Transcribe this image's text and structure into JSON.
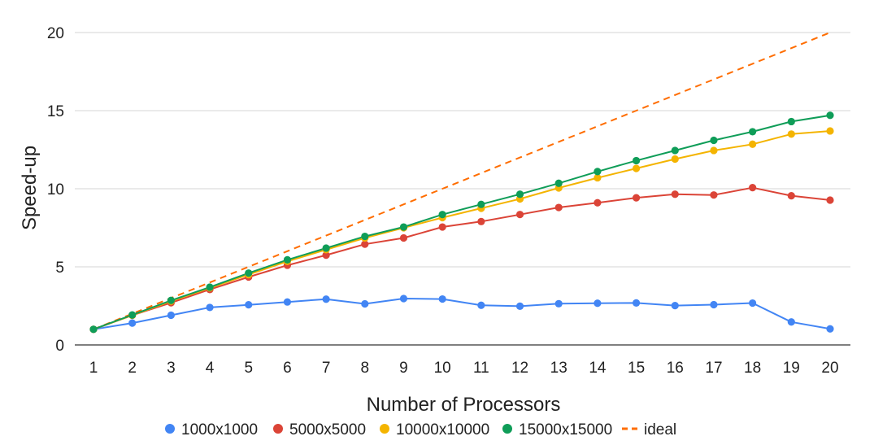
{
  "chart_data": {
    "type": "line",
    "title": "",
    "xlabel": "Number of Processors",
    "ylabel": "Speed-up",
    "x": [
      1,
      2,
      3,
      4,
      5,
      6,
      7,
      8,
      9,
      10,
      11,
      12,
      13,
      14,
      15,
      16,
      17,
      18,
      19,
      20
    ],
    "ylim": [
      0,
      20
    ],
    "yticks": [
      0,
      5,
      10,
      15,
      20
    ],
    "grid": true,
    "legend_position": "bottom",
    "series": [
      {
        "name": "1000x1000",
        "color": "#4285F4",
        "style": "solid",
        "markers": true,
        "values": [
          1.0,
          1.4,
          1.9,
          2.4,
          2.57,
          2.75,
          2.93,
          2.63,
          2.97,
          2.94,
          2.54,
          2.48,
          2.64,
          2.67,
          2.69,
          2.52,
          2.58,
          2.68,
          1.47,
          1.03
        ]
      },
      {
        "name": "5000x5000",
        "color": "#DB4437",
        "style": "solid",
        "markers": true,
        "values": [
          1.0,
          1.9,
          2.7,
          3.55,
          4.35,
          5.1,
          5.75,
          6.45,
          6.85,
          7.55,
          7.9,
          8.35,
          8.8,
          9.1,
          9.42,
          9.65,
          9.6,
          10.07,
          9.55,
          9.27
        ]
      },
      {
        "name": "10000x10000",
        "color": "#F4B400",
        "style": "solid",
        "markers": true,
        "values": [
          1.0,
          1.9,
          2.8,
          3.65,
          4.5,
          5.35,
          6.1,
          6.85,
          7.5,
          8.15,
          8.75,
          9.35,
          10.05,
          10.7,
          11.3,
          11.9,
          12.45,
          12.85,
          13.5,
          13.7
        ]
      },
      {
        "name": "15000x15000",
        "color": "#0F9D58",
        "style": "solid",
        "markers": true,
        "values": [
          1.0,
          1.92,
          2.85,
          3.7,
          4.6,
          5.45,
          6.2,
          6.95,
          7.55,
          8.35,
          9.0,
          9.65,
          10.35,
          11.1,
          11.8,
          12.45,
          13.1,
          13.65,
          14.3,
          14.7
        ]
      },
      {
        "name": "ideal",
        "color": "#FF6D00",
        "style": "dashed",
        "markers": false,
        "values": [
          1,
          2,
          3,
          4,
          5,
          6,
          7,
          8,
          9,
          10,
          11,
          12,
          13,
          14,
          15,
          16,
          17,
          18,
          19,
          20
        ]
      }
    ]
  }
}
